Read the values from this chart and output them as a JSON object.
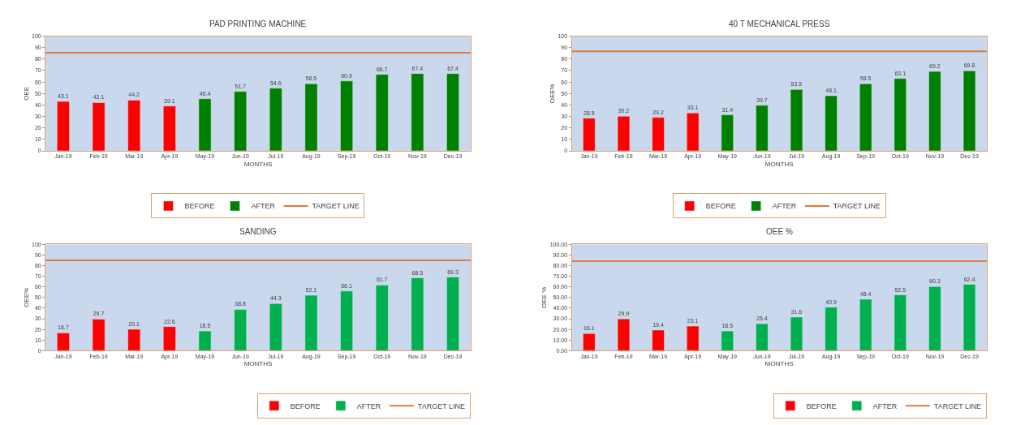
{
  "chart_data": [
    {
      "type": "bar",
      "title": "PAD PRINTING MACHINE",
      "xlabel": "MONTHS",
      "ylabel": "OEE",
      "categories": [
        "Jan-19",
        "Feb-19",
        "Mar-19",
        "Apr-19",
        "May-19",
        "Jun-19",
        "Jul-19",
        "Aug-19",
        "Sep-19",
        "Oct-19",
        "Nov-19",
        "Dec-19"
      ],
      "series": [
        {
          "name": "BEFORE",
          "color": "#ff0000",
          "values": [
            43.1,
            42.1,
            44.2,
            39.1,
            null,
            null,
            null,
            null,
            null,
            null,
            null,
            null
          ]
        },
        {
          "name": "AFTER",
          "color": "#008000",
          "values": [
            null,
            null,
            null,
            null,
            45.4,
            51.7,
            54.6,
            58.5,
            60.9,
            66.7,
            67.4,
            67.4
          ]
        }
      ],
      "ylim": [
        0,
        100
      ],
      "yticks": [
        0,
        10,
        20,
        30,
        40,
        50,
        60,
        70,
        80,
        90,
        100
      ],
      "ref_lines": [
        {
          "axis": "y",
          "value": 85.5,
          "label": "TARGET LINE",
          "color": "#e07b39"
        }
      ],
      "data_labels": true,
      "legend": "bottom"
    },
    {
      "type": "bar",
      "title": "40 T MECHANICAL PRESS",
      "xlabel": "MONTHS",
      "ylabel": "OEE%",
      "categories": [
        "Jan-19",
        "Feb-19",
        "Mar-19",
        "Apr-19",
        "May-19",
        "Jun-19",
        "Jul-19",
        "Aug-19",
        "Sep-19",
        "Oct-19",
        "Nov-19",
        "Dec-19"
      ],
      "series": [
        {
          "name": "BEFORE",
          "color": "#ff0000",
          "values": [
            28.5,
            30.2,
            29.2,
            33.1,
            null,
            null,
            null,
            null,
            null,
            null,
            null,
            null
          ]
        },
        {
          "name": "AFTER",
          "color": "#008000",
          "values": [
            null,
            null,
            null,
            null,
            31.4,
            39.7,
            53.5,
            48.1,
            58.5,
            63.1,
            69.2,
            69.8
          ]
        }
      ],
      "ylim": [
        0,
        100
      ],
      "yticks": [
        0,
        10,
        20,
        30,
        40,
        50,
        60,
        70,
        80,
        90,
        100
      ],
      "ref_lines": [
        {
          "axis": "y",
          "value": 86.8,
          "label": "TARGET LINE",
          "color": "#e07b39"
        }
      ],
      "data_labels": true,
      "legend": "bottom"
    },
    {
      "type": "bar",
      "title": "SANDING",
      "xlabel": "MONTHS",
      "ylabel": "OEE%",
      "categories": [
        "Jan-19",
        "Feb-19",
        "Mar-19",
        "Apr-19",
        "May-19",
        "Jun-19",
        "Jul-19",
        "Aug-19",
        "Sep-19",
        "Oct-19",
        "Nov-19",
        "Dec-19"
      ],
      "series": [
        {
          "name": "BEFORE",
          "color": "#ff0000",
          "values": [
            16.7,
            29.7,
            20.1,
            22.6,
            null,
            null,
            null,
            null,
            null,
            null,
            null,
            null
          ]
        },
        {
          "name": "AFTER",
          "color": "#00b050",
          "values": [
            null,
            null,
            null,
            null,
            18.5,
            38.8,
            44.3,
            52.1,
            56.1,
            61.7,
            68.5,
            69.3
          ]
        }
      ],
      "ylim": [
        0,
        100
      ],
      "yticks": [
        0,
        10,
        20,
        30,
        40,
        50,
        60,
        70,
        80,
        90,
        100
      ],
      "ref_lines": [
        {
          "axis": "y",
          "value": 85.0,
          "label": "TARGET LINE",
          "color": "#e07b39"
        }
      ],
      "data_labels": true,
      "legend": "bottom right"
    },
    {
      "type": "bar",
      "title": "OEE %",
      "xlabel": "MONTHS",
      "ylabel": "OEE %",
      "categories": [
        "Jan-19",
        "Feb-19",
        "Mar-19",
        "Apr-19",
        "May-19",
        "Jun-19",
        "Jul-19",
        "Aug-19",
        "Sep-19",
        "Oct-19",
        "Nov-19",
        "Dec-19"
      ],
      "series": [
        {
          "name": "BEFORE",
          "color": "#ff0000",
          "values": [
            16.1,
            29.9,
            19.4,
            23.1,
            null,
            null,
            null,
            null,
            null,
            null,
            null,
            null
          ]
        },
        {
          "name": "AFTER",
          "color": "#00b050",
          "values": [
            null,
            null,
            null,
            null,
            18.5,
            25.4,
            31.6,
            40.9,
            48.4,
            52.5,
            60.3,
            62.4
          ]
        }
      ],
      "ylim": [
        0,
        100
      ],
      "yticks": [
        {
          "value": 0,
          "label": "0.00"
        },
        {
          "value": 10,
          "label": "10.00"
        },
        {
          "value": 20,
          "label": "20.00"
        },
        {
          "value": 30,
          "label": "30.00"
        },
        {
          "value": 40,
          "label": "40.00"
        },
        {
          "value": 50,
          "label": "50.00"
        },
        {
          "value": 60,
          "label": "60.00"
        },
        {
          "value": 70,
          "label": "70.00"
        },
        {
          "value": 80,
          "label": "80.00"
        },
        {
          "value": 90,
          "label": "90.00"
        },
        {
          "value": 100,
          "label": "100.00"
        }
      ],
      "ref_lines": [
        {
          "axis": "y",
          "value": 84.2,
          "label": "TARGET LINE",
          "color": "#e07b39"
        }
      ],
      "data_labels": true,
      "legend": "bottom right"
    }
  ]
}
